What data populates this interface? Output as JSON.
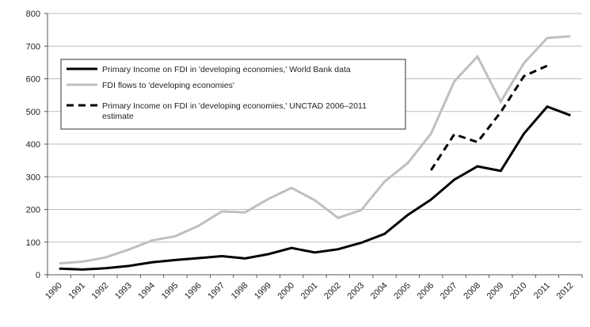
{
  "chart_data": {
    "type": "line",
    "title": "",
    "xlabel": "",
    "ylabel": "",
    "ylim": [
      0,
      800
    ],
    "yticks": [
      0,
      100,
      200,
      300,
      400,
      500,
      600,
      700,
      800
    ],
    "grid": "horizontal",
    "legend_position": "upper-left",
    "categories": [
      "1990",
      "1991",
      "1992",
      "1993",
      "1994",
      "1995",
      "1996",
      "1997",
      "1998",
      "1999",
      "2000",
      "2001",
      "2002",
      "2003",
      "2004",
      "2005",
      "2006",
      "2007",
      "2008",
      "2009",
      "2010",
      "2011",
      "2012"
    ],
    "series": [
      {
        "name": "Primary Income on FDI in 'developing economies,' World Bank data",
        "color": "#000000",
        "style": "solid",
        "values": [
          19,
          16,
          20,
          27,
          38,
          45,
          51,
          57,
          50,
          63,
          82,
          68,
          78,
          98,
          125,
          183,
          230,
          291,
          332,
          318,
          432,
          515,
          488
        ]
      },
      {
        "name": "FDI flows to 'developing economies'",
        "color": "#bfbfbf",
        "style": "solid",
        "values": [
          35,
          40,
          53,
          77,
          105,
          118,
          150,
          194,
          191,
          232,
          266,
          228,
          174,
          198,
          285,
          342,
          432,
          592,
          668,
          530,
          648,
          725,
          730
        ]
      },
      {
        "name": "Primary Income on FDI in 'developing economies,'  UNCTAD 2006–2011 estimate",
        "color": "#000000",
        "style": "dashed",
        "values": [
          null,
          null,
          null,
          null,
          null,
          null,
          null,
          null,
          null,
          null,
          null,
          null,
          null,
          null,
          null,
          null,
          320,
          430,
          406,
          498,
          608,
          640,
          null
        ]
      }
    ]
  }
}
